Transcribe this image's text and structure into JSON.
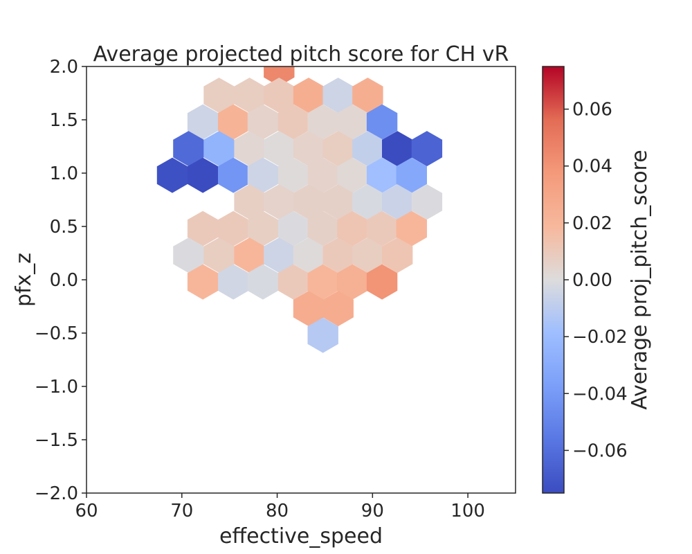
{
  "chart_data": {
    "type": "heatmap",
    "title": "Average projected pitch score for CH vR",
    "xlabel": "effective_speed",
    "ylabel": "pfx_z",
    "xlim": [
      60,
      105
    ],
    "ylim": [
      -2.0,
      2.0
    ],
    "xticks": [
      "60",
      "70",
      "80",
      "90",
      "100"
    ],
    "yticks": [
      "2.0",
      "1.5",
      "1.0",
      "0.5",
      "0.0",
      "−0.5",
      "−1.0",
      "−1.5",
      "−2.0"
    ],
    "colorbar": {
      "label": "Average proj_pitch_score",
      "range": [
        -0.075,
        0.075
      ],
      "ticks": [
        "0.06",
        "0.04",
        "0.02",
        "0.00",
        "−0.02",
        "−0.04",
        "−0.06"
      ],
      "colormap": "coolwarm"
    },
    "grid": false,
    "hex_cells": [
      {
        "x": 80.2,
        "y": 1.98,
        "v": 0.045
      },
      {
        "x": 73.9,
        "y": 1.73,
        "v": 0.008
      },
      {
        "x": 77.1,
        "y": 1.73,
        "v": 0.008
      },
      {
        "x": 80.2,
        "y": 1.73,
        "v": 0.01
      },
      {
        "x": 83.3,
        "y": 1.73,
        "v": 0.025
      },
      {
        "x": 86.4,
        "y": 1.73,
        "v": -0.005
      },
      {
        "x": 89.5,
        "y": 1.73,
        "v": 0.025
      },
      {
        "x": 72.2,
        "y": 1.48,
        "v": -0.005
      },
      {
        "x": 75.4,
        "y": 1.48,
        "v": 0.022
      },
      {
        "x": 78.5,
        "y": 1.48,
        "v": 0.005
      },
      {
        "x": 81.7,
        "y": 1.48,
        "v": 0.01
      },
      {
        "x": 84.8,
        "y": 1.48,
        "v": 0.003
      },
      {
        "x": 87.9,
        "y": 1.48,
        "v": 0.003
      },
      {
        "x": 91.0,
        "y": 1.48,
        "v": -0.045
      },
      {
        "x": 70.7,
        "y": 1.23,
        "v": -0.062
      },
      {
        "x": 73.9,
        "y": 1.23,
        "v": -0.025
      },
      {
        "x": 77.1,
        "y": 1.23,
        "v": 0.003
      },
      {
        "x": 80.2,
        "y": 1.23,
        "v": 0.001
      },
      {
        "x": 83.3,
        "y": 1.23,
        "v": 0.005
      },
      {
        "x": 86.4,
        "y": 1.23,
        "v": 0.008
      },
      {
        "x": 89.5,
        "y": 1.23,
        "v": -0.008
      },
      {
        "x": 92.6,
        "y": 1.23,
        "v": -0.075
      },
      {
        "x": 95.7,
        "y": 1.23,
        "v": -0.065
      },
      {
        "x": 69.0,
        "y": 0.98,
        "v": -0.073
      },
      {
        "x": 72.2,
        "y": 0.98,
        "v": -0.075
      },
      {
        "x": 75.4,
        "y": 0.98,
        "v": -0.042
      },
      {
        "x": 78.5,
        "y": 0.98,
        "v": -0.005
      },
      {
        "x": 81.7,
        "y": 0.98,
        "v": 0.001
      },
      {
        "x": 84.8,
        "y": 0.98,
        "v": 0.005
      },
      {
        "x": 87.9,
        "y": 0.98,
        "v": 0.002
      },
      {
        "x": 91.0,
        "y": 0.98,
        "v": -0.018
      },
      {
        "x": 94.1,
        "y": 0.98,
        "v": -0.032
      },
      {
        "x": 77.1,
        "y": 0.73,
        "v": 0.007
      },
      {
        "x": 80.2,
        "y": 0.73,
        "v": 0.005
      },
      {
        "x": 83.3,
        "y": 0.73,
        "v": 0.006
      },
      {
        "x": 86.4,
        "y": 0.73,
        "v": 0.006
      },
      {
        "x": 89.5,
        "y": 0.73,
        "v": -0.002
      },
      {
        "x": 92.6,
        "y": 0.73,
        "v": -0.006
      },
      {
        "x": 95.7,
        "y": 0.73,
        "v": -0.001
      },
      {
        "x": 72.2,
        "y": 0.48,
        "v": 0.01
      },
      {
        "x": 75.4,
        "y": 0.48,
        "v": 0.01
      },
      {
        "x": 78.5,
        "y": 0.48,
        "v": 0.007
      },
      {
        "x": 81.7,
        "y": 0.48,
        "v": -0.001
      },
      {
        "x": 84.8,
        "y": 0.48,
        "v": 0.006
      },
      {
        "x": 87.9,
        "y": 0.48,
        "v": 0.012
      },
      {
        "x": 91.0,
        "y": 0.48,
        "v": 0.01
      },
      {
        "x": 94.1,
        "y": 0.48,
        "v": 0.02
      },
      {
        "x": 70.7,
        "y": 0.23,
        "v": -0.001
      },
      {
        "x": 73.9,
        "y": 0.23,
        "v": 0.008
      },
      {
        "x": 77.1,
        "y": 0.23,
        "v": 0.02
      },
      {
        "x": 80.2,
        "y": 0.23,
        "v": -0.005
      },
      {
        "x": 83.3,
        "y": 0.23,
        "v": 0.001
      },
      {
        "x": 86.4,
        "y": 0.23,
        "v": 0.01
      },
      {
        "x": 89.5,
        "y": 0.23,
        "v": 0.008
      },
      {
        "x": 92.6,
        "y": 0.23,
        "v": 0.012
      },
      {
        "x": 72.2,
        "y": -0.02,
        "v": 0.02
      },
      {
        "x": 75.4,
        "y": -0.02,
        "v": -0.004
      },
      {
        "x": 78.5,
        "y": -0.02,
        "v": -0.002
      },
      {
        "x": 81.7,
        "y": -0.02,
        "v": 0.01
      },
      {
        "x": 84.8,
        "y": -0.02,
        "v": 0.02
      },
      {
        "x": 87.9,
        "y": -0.02,
        "v": 0.024
      },
      {
        "x": 91.0,
        "y": -0.02,
        "v": 0.04
      },
      {
        "x": 83.3,
        "y": -0.27,
        "v": 0.026
      },
      {
        "x": 86.4,
        "y": -0.27,
        "v": 0.026
      },
      {
        "x": 84.8,
        "y": -0.52,
        "v": -0.012
      }
    ]
  }
}
